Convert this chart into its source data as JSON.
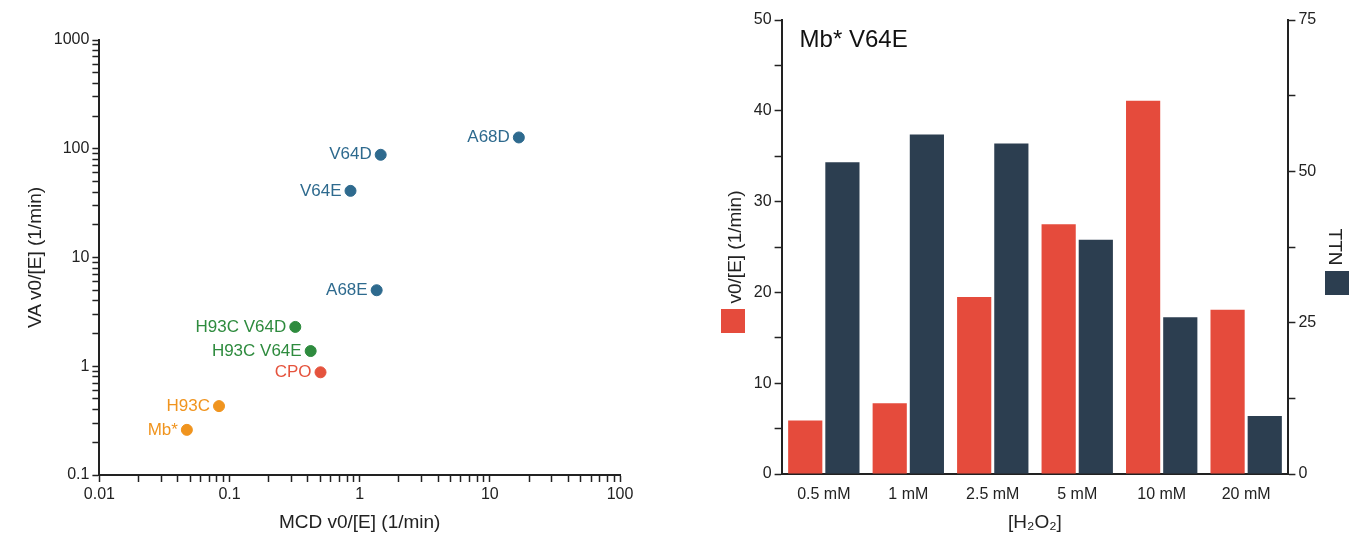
{
  "chart_data": [
    {
      "type": "scatter",
      "xlabel": "MCD v0/[E] (1/min)",
      "ylabel": "VA v0/[E] (1/min)",
      "log": "xy",
      "marker": "circle",
      "grid": false,
      "xlim": [
        0.01,
        100
      ],
      "ylim": [
        0.1,
        1000
      ],
      "xticks": [
        0.01,
        {
          "value": 0.02,
          "label": null
        },
        {
          "value": 0.03,
          "label": null
        },
        {
          "value": 0.04,
          "label": null
        },
        {
          "value": 0.05,
          "label": null
        },
        {
          "value": 0.06,
          "label": null
        },
        {
          "value": 0.07,
          "label": null
        },
        {
          "value": 0.08,
          "label": null
        },
        {
          "value": 0.09,
          "label": null
        },
        0.1,
        {
          "value": 0.2,
          "label": null
        },
        {
          "value": 0.3,
          "label": null
        },
        {
          "value": 0.4,
          "label": null
        },
        {
          "value": 0.5,
          "label": null
        },
        {
          "value": 0.6,
          "label": null
        },
        {
          "value": 0.7,
          "label": null
        },
        {
          "value": 0.8,
          "label": null
        },
        {
          "value": 0.9,
          "label": null
        },
        1,
        {
          "value": 2,
          "label": null
        },
        {
          "value": 3,
          "label": null
        },
        {
          "value": 4,
          "label": null
        },
        {
          "value": 5,
          "label": null
        },
        {
          "value": 6,
          "label": null
        },
        {
          "value": 7,
          "label": null
        },
        {
          "value": 8,
          "label": null
        },
        {
          "value": 9,
          "label": null
        },
        10,
        {
          "value": 20,
          "label": null
        },
        {
          "value": 30,
          "label": null
        },
        {
          "value": 40,
          "label": null
        },
        {
          "value": 50,
          "label": null
        },
        {
          "value": 60,
          "label": null
        },
        {
          "value": 70,
          "label": null
        },
        {
          "value": 80,
          "label": null
        },
        {
          "value": 90,
          "label": null
        },
        100
      ],
      "yticks": [
        0.1,
        {
          "value": 0.2,
          "label": null
        },
        {
          "value": 0.3,
          "label": null
        },
        {
          "value": 0.4,
          "label": null
        },
        {
          "value": 0.5,
          "label": null
        },
        {
          "value": 0.6,
          "label": null
        },
        {
          "value": 0.7,
          "label": null
        },
        {
          "value": 0.8,
          "label": null
        },
        {
          "value": 0.9,
          "label": null
        },
        1,
        {
          "value": 2,
          "label": null
        },
        {
          "value": 3,
          "label": null
        },
        {
          "value": 4,
          "label": null
        },
        {
          "value": 5,
          "label": null
        },
        {
          "value": 6,
          "label": null
        },
        {
          "value": 7,
          "label": null
        },
        {
          "value": 8,
          "label": null
        },
        {
          "value": 9,
          "label": null
        },
        10,
        {
          "value": 20,
          "label": null
        },
        {
          "value": 30,
          "label": null
        },
        {
          "value": 40,
          "label": null
        },
        {
          "value": 50,
          "label": null
        },
        {
          "value": 60,
          "label": null
        },
        {
          "value": 70,
          "label": null
        },
        {
          "value": 80,
          "label": null
        },
        {
          "value": 90,
          "label": null
        },
        100,
        {
          "value": 200,
          "label": null
        },
        {
          "value": 300,
          "label": null
        },
        {
          "value": 400,
          "label": null
        },
        {
          "value": 500,
          "label": null
        },
        {
          "value": 600,
          "label": null
        },
        {
          "value": 700,
          "label": null
        },
        {
          "value": 800,
          "label": null
        },
        {
          "value": 900,
          "label": null
        },
        1000
      ],
      "series": [
        {
          "name": "A68D",
          "color": "#2e6a8e",
          "x": [
            16.7
          ],
          "values": [
            127
          ]
        },
        {
          "name": "V64D",
          "color": "#2e6a8e",
          "x": [
            1.45
          ],
          "values": [
            88
          ]
        },
        {
          "name": "V64E",
          "color": "#2e6a8e",
          "x": [
            0.85
          ],
          "values": [
            41
          ]
        },
        {
          "name": "A68E",
          "color": "#2e6a8e",
          "x": [
            1.35
          ],
          "values": [
            5
          ]
        },
        {
          "name": "H93C V64D",
          "color": "#2e8b3e",
          "x": [
            0.32
          ],
          "values": [
            2.3
          ]
        },
        {
          "name": "H93C V64E",
          "color": "#2e8b3e",
          "x": [
            0.42
          ],
          "values": [
            1.38
          ]
        },
        {
          "name": "CPO",
          "color": "#e5533d",
          "x": [
            0.5
          ],
          "values": [
            0.88
          ]
        },
        {
          "name": "H93C",
          "color": "#f0941e",
          "x": [
            0.083
          ],
          "values": [
            0.43
          ]
        },
        {
          "name": "Mb*",
          "color": "#f0941e",
          "x": [
            0.047
          ],
          "values": [
            0.26
          ]
        }
      ]
    },
    {
      "type": "bar",
      "title": "Mb* V64E",
      "xlabel": "[H₂O₂]",
      "ylabel": "v0/[E] (1/min)",
      "y2label": "TTN",
      "grid": false,
      "categories": [
        "0.5 mM",
        "1 mM",
        "2.5 mM",
        "5 mM",
        "10 mM",
        "20 mM"
      ],
      "ylim": [
        0,
        50
      ],
      "yticks": [
        0,
        {
          "value": 5,
          "label": null
        },
        10,
        {
          "value": 15,
          "label": null
        },
        20,
        {
          "value": 25,
          "label": null
        },
        30,
        {
          "value": 35,
          "label": null
        },
        40,
        {
          "value": 45,
          "label": null
        },
        50
      ],
      "y2lim": [
        0,
        75
      ],
      "y2ticks": [
        0,
        {
          "value": 12.5,
          "label": null
        },
        25,
        {
          "value": 37.5,
          "label": null
        },
        50,
        {
          "value": 62.5,
          "label": null
        },
        75
      ],
      "series": [
        {
          "color": "#e54b3c",
          "values": [
            5.9,
            7.8,
            19.5,
            27.5,
            41.1,
            18.1
          ]
        },
        {
          "color": "#2c3e50",
          "axis": "y2",
          "values": [
            51.5,
            56.1,
            54.6,
            38.7,
            25.9,
            9.6
          ]
        }
      ]
    }
  ]
}
